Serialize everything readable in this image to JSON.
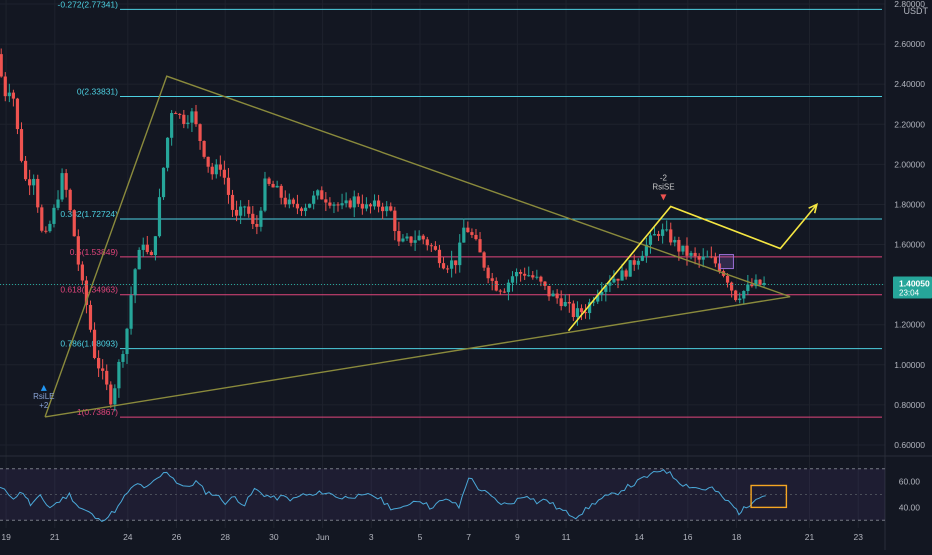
{
  "chart_data": {
    "type": "candlestick",
    "instrument": {
      "quote_currency": "USDT",
      "last_price": "1.40050",
      "countdown": "23:04"
    },
    "price_axis": {
      "ticks": [
        "2.80000",
        "2.60000",
        "2.40000",
        "2.20000",
        "2.00000",
        "1.80000",
        "1.60000",
        "1.40000",
        "1.20000",
        "1.00000",
        "0.80000",
        "0.60000"
      ],
      "ylim": [
        0.55,
        2.82
      ],
      "tick_values": [
        2.8,
        2.6,
        2.4,
        2.2,
        2.0,
        1.8,
        1.6,
        1.4,
        1.2,
        1.0,
        0.8,
        0.6
      ]
    },
    "time_axis": {
      "ticks": [
        {
          "label": "19",
          "day": -1
        },
        {
          "label": "21",
          "day": 1
        },
        {
          "label": "24",
          "day": 4
        },
        {
          "label": "26",
          "day": 6
        },
        {
          "label": "28",
          "day": 8
        },
        {
          "label": "30",
          "day": 10
        },
        {
          "label": "Jun",
          "day": 12
        },
        {
          "label": "3",
          "day": 14
        },
        {
          "label": "5",
          "day": 16
        },
        {
          "label": "7",
          "day": 18
        },
        {
          "label": "9",
          "day": 20
        },
        {
          "label": "11",
          "day": 22
        },
        {
          "label": "14",
          "day": 25
        },
        {
          "label": "16",
          "day": 27
        },
        {
          "label": "18",
          "day": 29
        },
        {
          "label": "21",
          "day": 32
        },
        {
          "label": "23",
          "day": 34
        }
      ],
      "xlim": [
        -1.25,
        35.1
      ]
    },
    "fib_levels": [
      {
        "label": "-0.272(2.77341)",
        "value": 2.77341,
        "color": "#4dd0e1"
      },
      {
        "label": "0(2.33831)",
        "value": 2.33831,
        "color": "#4dd0e1"
      },
      {
        "label": "0.382(1.72724)",
        "value": 1.72724,
        "color": "#4dd0e1"
      },
      {
        "label": "0.5(1.53849)",
        "value": 1.53849,
        "color": "#e0457b"
      },
      {
        "label": "0.618(1.34963)",
        "value": 1.34963,
        "color": "#e0457b"
      },
      {
        "label": "0.786(1.08093)",
        "value": 1.08093,
        "color": "#4dd0e1"
      },
      {
        "label": "1(0.73867)",
        "value": 0.73867,
        "color": "#e0457b"
      }
    ],
    "triangle": {
      "color": "#8a8a3c",
      "apex": [
        0.6,
        0.74
      ],
      "top": [
        5.6,
        2.44
      ],
      "tip": [
        31.2,
        1.34
      ]
    },
    "projection": {
      "color": "#f5e642",
      "points": [
        [
          22.1,
          1.17
        ],
        [
          26.3,
          1.79
        ],
        [
          30.8,
          1.58
        ],
        [
          32.3,
          1.8
        ]
      ]
    },
    "signals": [
      {
        "text": "RsiLE",
        "sub": "+2",
        "day": 0.55,
        "price": 0.85,
        "color": "#8aa4d6"
      },
      {
        "text": "RsiSE",
        "sub": "-2",
        "day": 26.0,
        "price": 1.87,
        "color": "#c8c8c8"
      }
    ],
    "candles_up_color": "#26a69a",
    "candles_down_color": "#ef5350",
    "ohlc_key_points": [
      [
        -1.2,
        2.55
      ],
      [
        -0.9,
        2.35
      ],
      [
        -0.6,
        2.4
      ],
      [
        -0.3,
        2.1
      ],
      [
        0.0,
        1.9
      ],
      [
        0.3,
        1.95
      ],
      [
        0.7,
        1.6
      ],
      [
        1.1,
        1.75
      ],
      [
        1.5,
        1.95
      ],
      [
        1.9,
        1.7
      ],
      [
        2.2,
        1.45
      ],
      [
        2.5,
        1.28
      ],
      [
        2.8,
        1.05
      ],
      [
        3.2,
        0.92
      ],
      [
        3.5,
        0.82
      ],
      [
        3.8,
        1.0
      ],
      [
        4.1,
        1.15
      ],
      [
        4.4,
        1.45
      ],
      [
        4.8,
        1.62
      ],
      [
        5.1,
        1.5
      ],
      [
        5.4,
        1.75
      ],
      [
        5.7,
        2.05
      ],
      [
        6.0,
        2.3
      ],
      [
        6.4,
        2.22
      ],
      [
        6.8,
        2.25
      ],
      [
        7.2,
        2.1
      ],
      [
        7.6,
        1.95
      ],
      [
        8.0,
        2.0
      ],
      [
        8.3,
        1.85
      ],
      [
        8.6,
        1.72
      ],
      [
        9.0,
        1.8
      ],
      [
        9.4,
        1.65
      ],
      [
        9.8,
        1.9
      ],
      [
        10.2,
        1.88
      ],
      [
        10.6,
        1.82
      ],
      [
        11.0,
        1.78
      ],
      [
        11.5,
        1.8
      ],
      [
        12.0,
        1.85
      ],
      [
        12.5,
        1.82
      ],
      [
        13.0,
        1.78
      ],
      [
        13.5,
        1.83
      ],
      [
        14.0,
        1.78
      ],
      [
        14.5,
        1.8
      ],
      [
        15.0,
        1.76
      ],
      [
        15.3,
        1.6
      ],
      [
        15.7,
        1.62
      ],
      [
        16.2,
        1.64
      ],
      [
        16.7,
        1.58
      ],
      [
        17.2,
        1.5
      ],
      [
        17.7,
        1.52
      ],
      [
        18.0,
        1.7
      ],
      [
        18.4,
        1.62
      ],
      [
        18.8,
        1.5
      ],
      [
        19.2,
        1.4
      ],
      [
        19.6,
        1.38
      ],
      [
        20.0,
        1.45
      ],
      [
        20.5,
        1.46
      ],
      [
        21.0,
        1.42
      ],
      [
        21.5,
        1.35
      ],
      [
        22.0,
        1.32
      ],
      [
        22.5,
        1.25
      ],
      [
        23.0,
        1.28
      ],
      [
        23.5,
        1.38
      ],
      [
        24.0,
        1.43
      ],
      [
        24.5,
        1.45
      ],
      [
        25.0,
        1.52
      ],
      [
        25.5,
        1.6
      ],
      [
        26.0,
        1.67
      ],
      [
        26.4,
        1.64
      ],
      [
        26.8,
        1.58
      ],
      [
        27.2,
        1.55
      ],
      [
        27.6,
        1.52
      ],
      [
        28.0,
        1.53
      ],
      [
        28.4,
        1.5
      ],
      [
        28.8,
        1.43
      ],
      [
        29.1,
        1.34
      ],
      [
        29.5,
        1.37
      ],
      [
        29.9,
        1.4
      ],
      [
        30.2,
        1.4
      ]
    ],
    "rsi": {
      "levels_dashed": [
        70,
        30
      ],
      "mid": 50,
      "ylim": [
        24,
        76
      ],
      "ticks": [
        "60.00",
        "40.00"
      ],
      "tick_values": [
        60,
        40
      ],
      "line_color": "#4aa8d8",
      "box_color": "#f5a623",
      "values": [
        [
          -1.25,
          55
        ],
        [
          -0.7,
          48
        ],
        [
          -0.3,
          52
        ],
        [
          0.0,
          42
        ],
        [
          0.4,
          48
        ],
        [
          0.8,
          40
        ],
        [
          1.2,
          45
        ],
        [
          1.6,
          50
        ],
        [
          2.0,
          40
        ],
        [
          2.4,
          36
        ],
        [
          2.8,
          30
        ],
        [
          3.2,
          33
        ],
        [
          3.6,
          40
        ],
        [
          4.0,
          52
        ],
        [
          4.4,
          58
        ],
        [
          4.8,
          55
        ],
        [
          5.2,
          62
        ],
        [
          5.6,
          68
        ],
        [
          6.0,
          60
        ],
        [
          6.4,
          55
        ],
        [
          6.8,
          60
        ],
        [
          7.2,
          52
        ],
        [
          7.6,
          50
        ],
        [
          8.0,
          44
        ],
        [
          8.4,
          48
        ],
        [
          8.8,
          42
        ],
        [
          9.2,
          54
        ],
        [
          9.6,
          50
        ],
        [
          10.0,
          47
        ],
        [
          10.4,
          48
        ],
        [
          10.8,
          46
        ],
        [
          11.2,
          50
        ],
        [
          11.6,
          49
        ],
        [
          12.0,
          52
        ],
        [
          12.4,
          50
        ],
        [
          12.8,
          47
        ],
        [
          13.2,
          49
        ],
        [
          13.6,
          48
        ],
        [
          14.0,
          50
        ],
        [
          14.4,
          46
        ],
        [
          14.8,
          40
        ],
        [
          15.2,
          38
        ],
        [
          15.6,
          44
        ],
        [
          16.0,
          46
        ],
        [
          16.4,
          40
        ],
        [
          16.8,
          44
        ],
        [
          17.2,
          46
        ],
        [
          17.6,
          40
        ],
        [
          18.0,
          64
        ],
        [
          18.4,
          55
        ],
        [
          18.8,
          50
        ],
        [
          19.2,
          44
        ],
        [
          19.6,
          42
        ],
        [
          20.0,
          46
        ],
        [
          20.4,
          50
        ],
        [
          20.8,
          44
        ],
        [
          21.2,
          46
        ],
        [
          21.6,
          40
        ],
        [
          22.0,
          36
        ],
        [
          22.4,
          33
        ],
        [
          22.8,
          38
        ],
        [
          23.2,
          44
        ],
        [
          23.6,
          48
        ],
        [
          24.0,
          50
        ],
        [
          24.4,
          55
        ],
        [
          24.8,
          58
        ],
        [
          25.2,
          63
        ],
        [
          25.6,
          66
        ],
        [
          26.0,
          70
        ],
        [
          26.4,
          64
        ],
        [
          26.8,
          58
        ],
        [
          27.2,
          56
        ],
        [
          27.6,
          54
        ],
        [
          28.0,
          55
        ],
        [
          28.4,
          48
        ],
        [
          28.8,
          42
        ],
        [
          29.1,
          36
        ],
        [
          29.4,
          40
        ],
        [
          29.8,
          48
        ],
        [
          30.2,
          49
        ]
      ],
      "highlight_box": {
        "day_from": 29.6,
        "day_to": 31.05,
        "rsi_from": 40,
        "rsi_to": 57
      }
    }
  }
}
